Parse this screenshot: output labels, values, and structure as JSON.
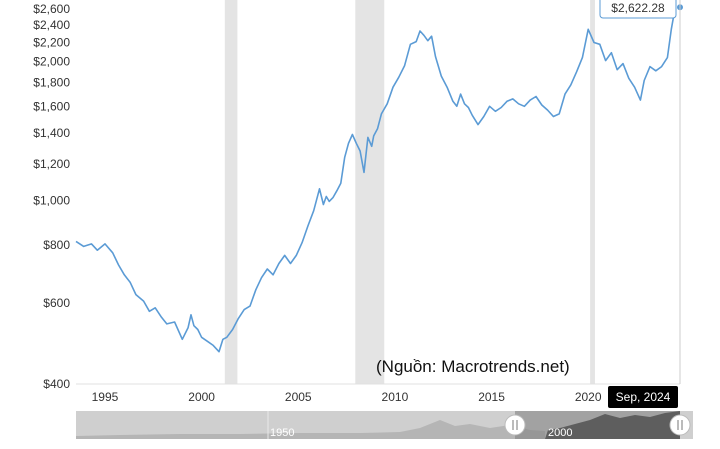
{
  "chart_data": {
    "type": "line",
    "title": "",
    "xlabel": "",
    "ylabel": "",
    "yscale": "log",
    "ylim": [
      400,
      2600
    ],
    "xlim": [
      1993.5,
      2024.75
    ],
    "y_ticks": [
      {
        "value": 400,
        "label": "$400"
      },
      {
        "value": 600,
        "label": "$600"
      },
      {
        "value": 800,
        "label": "$800"
      },
      {
        "value": 1000,
        "label": "$1,000"
      },
      {
        "value": 1200,
        "label": "$1,200"
      },
      {
        "value": 1400,
        "label": "$1,400"
      },
      {
        "value": 1600,
        "label": "$1,600"
      },
      {
        "value": 1800,
        "label": "$1,800"
      },
      {
        "value": 2000,
        "label": "$2,000"
      },
      {
        "value": 2200,
        "label": "$2,200"
      },
      {
        "value": 2400,
        "label": "$2,400"
      },
      {
        "value": 2600,
        "label": "$2,600"
      }
    ],
    "x_ticks": [
      {
        "value": 1995,
        "label": "1995"
      },
      {
        "value": 2000,
        "label": "2000"
      },
      {
        "value": 2005,
        "label": "2005"
      },
      {
        "value": 2010,
        "label": "2010"
      },
      {
        "value": 2015,
        "label": "2015"
      },
      {
        "value": 2020,
        "label": "2020"
      }
    ],
    "recessions": [
      {
        "start": 2001.2,
        "end": 2001.85
      },
      {
        "start": 2007.95,
        "end": 2009.45
      },
      {
        "start": 2020.1,
        "end": 2020.35
      }
    ],
    "series": [
      {
        "color": "#5b9bd5",
        "x": [
          1993.5,
          1993.9,
          1994.3,
          1994.6,
          1995.0,
          1995.4,
          1995.7,
          1996.0,
          1996.3,
          1996.6,
          1997.0,
          1997.3,
          1997.6,
          1997.9,
          1998.2,
          1998.6,
          1999.0,
          1999.3,
          1999.45,
          1999.6,
          1999.8,
          2000.0,
          2000.3,
          2000.6,
          2000.9,
          2001.1,
          2001.3,
          2001.6,
          2001.9,
          2002.2,
          2002.5,
          2002.8,
          2003.1,
          2003.4,
          2003.7,
          2004.0,
          2004.3,
          2004.6,
          2004.9,
          2005.2,
          2005.5,
          2005.8,
          2006.1,
          2006.3,
          2006.45,
          2006.6,
          2006.8,
          2007.0,
          2007.2,
          2007.4,
          2007.6,
          2007.8,
          2008.0,
          2008.2,
          2008.4,
          2008.6,
          2008.8,
          2008.9,
          2009.1,
          2009.3,
          2009.6,
          2009.9,
          2010.2,
          2010.5,
          2010.8,
          2011.1,
          2011.3,
          2011.5,
          2011.7,
          2011.9,
          2012.1,
          2012.4,
          2012.7,
          2013.0,
          2013.2,
          2013.4,
          2013.6,
          2013.8,
          2014.0,
          2014.3,
          2014.6,
          2014.9,
          2015.2,
          2015.5,
          2015.8,
          2016.1,
          2016.4,
          2016.7,
          2017.0,
          2017.3,
          2017.6,
          2017.9,
          2018.2,
          2018.5,
          2018.8,
          2019.1,
          2019.4,
          2019.7,
          2020.0,
          2020.3,
          2020.6,
          2020.9,
          2021.2,
          2021.5,
          2021.8,
          2022.1,
          2022.4,
          2022.7,
          2022.9,
          2023.2,
          2023.5,
          2023.8,
          2024.1,
          2024.3,
          2024.5,
          2024.75
        ],
        "y": [
          815,
          795,
          805,
          780,
          805,
          770,
          725,
          690,
          665,
          625,
          605,
          575,
          585,
          560,
          540,
          545,
          500,
          530,
          565,
          535,
          525,
          505,
          495,
          485,
          470,
          500,
          505,
          525,
          555,
          580,
          590,
          640,
          680,
          710,
          690,
          730,
          760,
          730,
          760,
          810,
          880,
          950,
          1060,
          980,
          1020,
          995,
          1015,
          1050,
          1090,
          1240,
          1330,
          1390,
          1330,
          1280,
          1150,
          1370,
          1310,
          1380,
          1430,
          1540,
          1620,
          1760,
          1850,
          1960,
          2180,
          2210,
          2330,
          2280,
          2220,
          2270,
          2050,
          1860,
          1760,
          1640,
          1600,
          1700,
          1620,
          1590,
          1530,
          1460,
          1520,
          1600,
          1560,
          1590,
          1640,
          1660,
          1620,
          1600,
          1650,
          1680,
          1610,
          1570,
          1520,
          1540,
          1700,
          1780,
          1900,
          2040,
          2350,
          2200,
          2180,
          2010,
          2090,
          1920,
          1980,
          1840,
          1760,
          1650,
          1820,
          1950,
          1910,
          1950,
          2040,
          2350,
          2620,
          2622.28
        ]
      }
    ],
    "last_value_label": "$2,622.28",
    "selected_date_label": "Sep, 2024",
    "navigator": {
      "labels": [
        "1950",
        "2000"
      ]
    },
    "source_note": "(Nguồn: Macrotrends.net)"
  }
}
